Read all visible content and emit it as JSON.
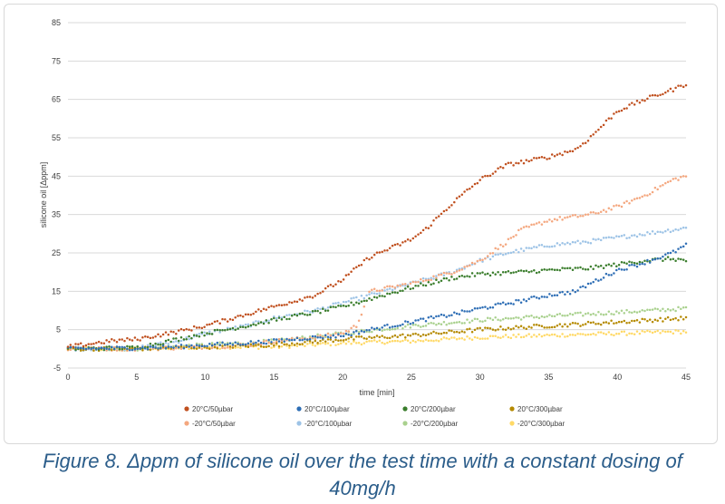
{
  "chart_data": {
    "type": "scatter",
    "xlabel": "time [min]",
    "ylabel": "silicone oil [Δppm]",
    "xlim": [
      0,
      45
    ],
    "ylim": [
      -5,
      85
    ],
    "xticks": [
      0,
      5,
      10,
      15,
      20,
      25,
      30,
      35,
      40,
      45
    ],
    "yticks": [
      -5,
      5,
      15,
      25,
      35,
      45,
      55,
      65,
      75,
      85
    ],
    "grid": "horizontal",
    "legend_position": "bottom",
    "series": [
      {
        "name": "20°C/50µbar",
        "color": "#c0501f",
        "x": [
          0,
          3,
          5,
          8,
          10,
          13,
          15,
          18,
          20,
          22,
          24,
          25,
          26,
          28,
          30,
          32,
          35,
          37,
          38,
          40,
          42,
          44,
          45
        ],
        "y": [
          0.5,
          2,
          2.5,
          4.5,
          6,
          9,
          11,
          14,
          18,
          24,
          27,
          28.5,
          31,
          38,
          44,
          48,
          50,
          52,
          55,
          62,
          65,
          67.5,
          69
        ]
      },
      {
        "name": "20°C/100µbar",
        "color": "#2e6eb5",
        "x": [
          0,
          5,
          8,
          10,
          13,
          15,
          18,
          20,
          22,
          25,
          28,
          30,
          33,
          35,
          37,
          38,
          40,
          42,
          44,
          45
        ],
        "y": [
          0,
          0.2,
          0.5,
          1,
          1.5,
          2,
          3,
          3.5,
          5,
          7,
          9,
          10.5,
          12.5,
          14,
          15,
          17,
          20.5,
          22.5,
          25,
          27
        ]
      },
      {
        "name": "20°C/200µbar",
        "color": "#3a7d2c",
        "x": [
          0,
          5,
          8,
          10,
          13,
          15,
          18,
          20,
          22,
          25,
          28,
          30,
          33,
          35,
          38,
          40,
          42,
          44,
          45
        ],
        "y": [
          0,
          0.3,
          2.5,
          4,
          6,
          7.5,
          9.5,
          11,
          13,
          16,
          18.5,
          19.5,
          20,
          20.5,
          21,
          22,
          23,
          23.5,
          23
        ]
      },
      {
        "name": "20°C/300µbar",
        "color": "#b58a00",
        "x": [
          0,
          5,
          10,
          15,
          20,
          25,
          30,
          35,
          40,
          45
        ],
        "y": [
          0,
          0,
          0.5,
          1,
          2.5,
          3.5,
          5,
          6,
          7,
          8
        ]
      },
      {
        "name": "-20°C/50µbar",
        "color": "#f4a77f",
        "x": [
          0,
          5,
          10,
          13,
          15,
          18,
          20,
          21,
          22,
          25,
          28,
          30,
          32,
          33,
          35,
          38,
          40,
          42,
          44,
          45
        ],
        "y": [
          0,
          0,
          0.5,
          1,
          2,
          3,
          4,
          6,
          15,
          17,
          20,
          23,
          28,
          31,
          33.5,
          35,
          37,
          40,
          44,
          45
        ]
      },
      {
        "name": "-20°C/100µbar",
        "color": "#9dc3e6",
        "x": [
          0,
          5,
          8,
          10,
          13,
          15,
          18,
          20,
          22,
          25,
          28,
          30,
          32,
          35,
          38,
          40,
          42,
          45
        ],
        "y": [
          0,
          0.2,
          2,
          4,
          6,
          8,
          10,
          12,
          14,
          17,
          20,
          23,
          25,
          27,
          28,
          29,
          30,
          31.5
        ]
      },
      {
        "name": "-20°C/200µbar",
        "color": "#a9d18e",
        "x": [
          0,
          5,
          10,
          15,
          20,
          25,
          30,
          35,
          40,
          45
        ],
        "y": [
          0,
          0,
          1,
          2,
          4,
          6,
          7.5,
          8.5,
          9.5,
          10.5
        ]
      },
      {
        "name": "-20°C/300µbar",
        "color": "#ffd966",
        "x": [
          0,
          5,
          10,
          15,
          20,
          25,
          30,
          35,
          40,
          45
        ],
        "y": [
          0,
          0,
          0.5,
          0.5,
          1.5,
          2,
          3,
          3.5,
          4,
          4.5
        ]
      }
    ]
  },
  "caption": {
    "line1": "Figure 8. Δppm of silicone oil over the test time with a constant dosing of",
    "line2": "40mg/h"
  }
}
